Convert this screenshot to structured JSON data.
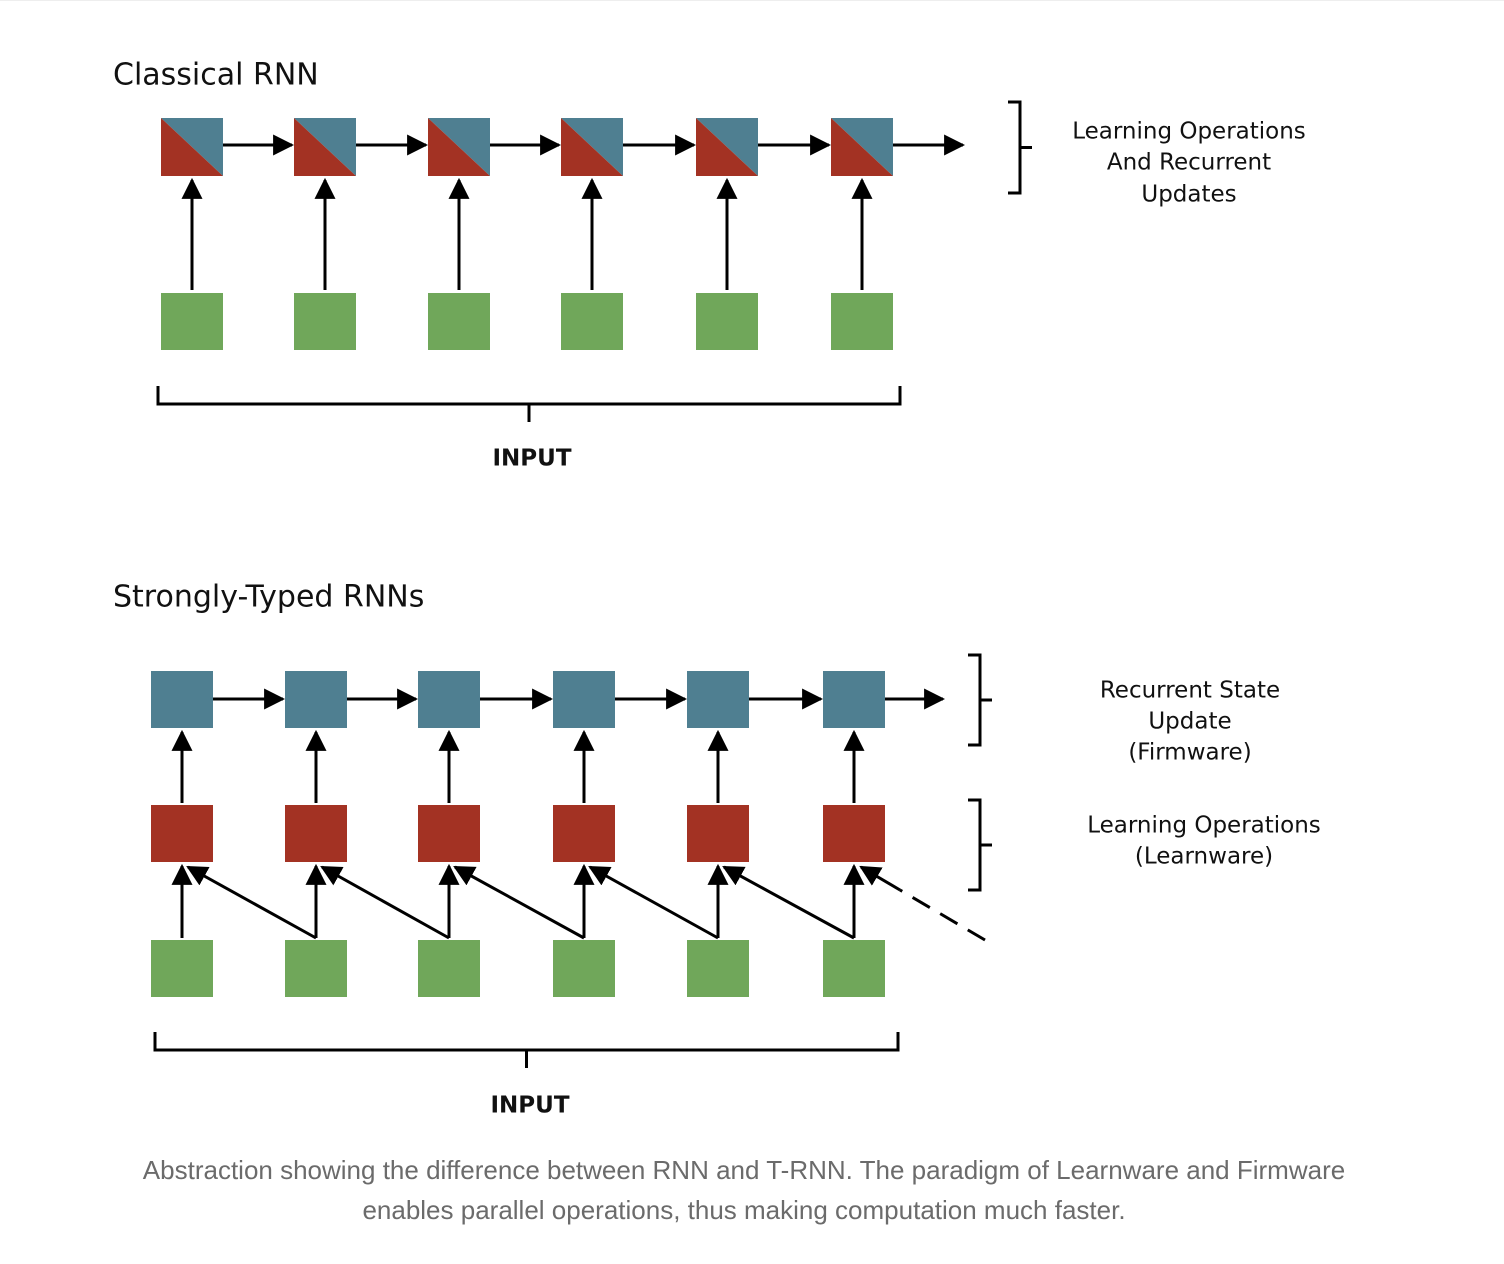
{
  "diagrams": [
    {
      "title": "Classical RNN",
      "brace_labels": [
        [
          "Learning Operations",
          "And Recurrent",
          "Updates"
        ]
      ],
      "input_label": "INPUT"
    },
    {
      "title": "Strongly-Typed RNNs",
      "brace_labels": [
        [
          "Recurrent State",
          "Update",
          "(Firmware)"
        ],
        [
          "Learning Operations",
          "(Learnware)"
        ]
      ],
      "input_label": "INPUT"
    }
  ],
  "caption": [
    "Abstraction showing the difference between RNN and T-RNN. The paradigm of Learnware and Firmware",
    "enables parallel operations, thus making computation much faster."
  ]
}
